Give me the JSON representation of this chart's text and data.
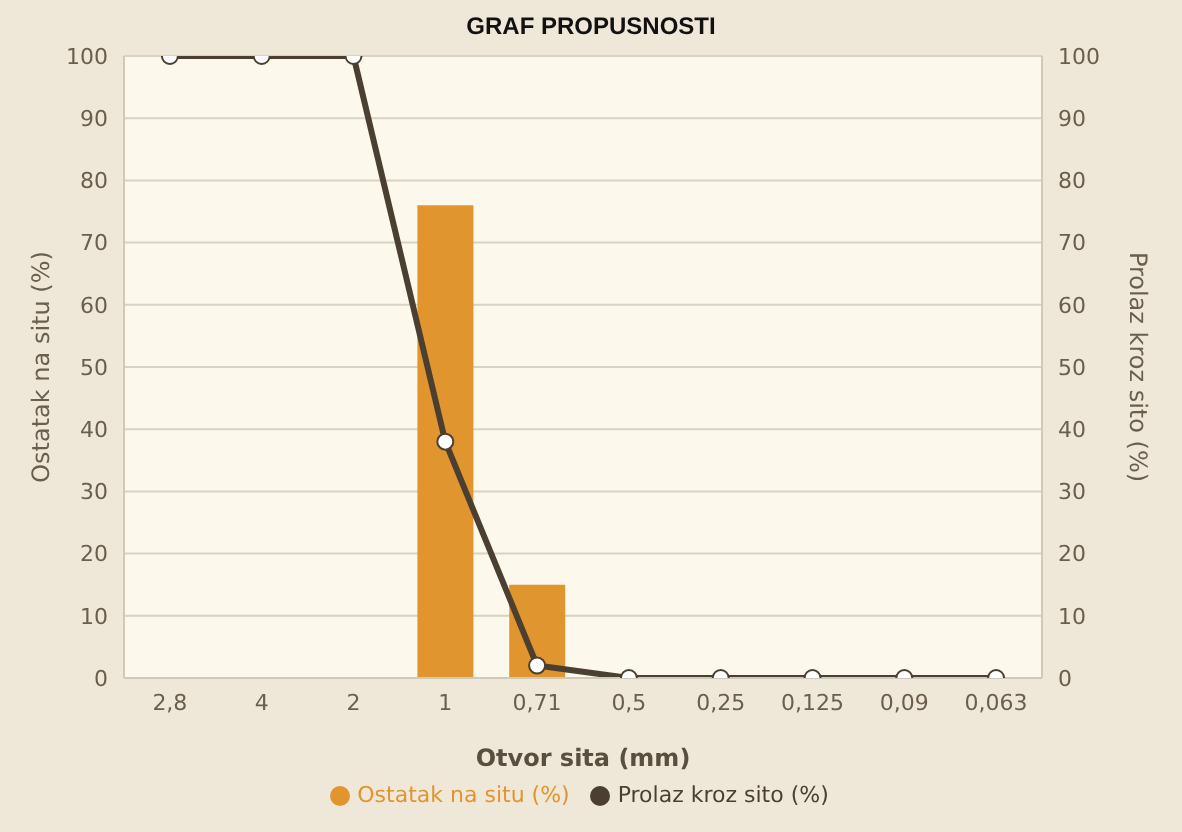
{
  "chart_data": {
    "type": "bar",
    "title": "GRAF PROPUSNOSTI",
    "xlabel": "Otvor sita (mm)",
    "ylabel": "Ostatak na situ (%)",
    "y2label": "Prolaz kroz sito (%)",
    "categories": [
      "2,8",
      "4",
      "2",
      "1",
      "0,71",
      "0,5",
      "0,25",
      "0,125",
      "0,09",
      "0,063"
    ],
    "series": [
      {
        "name": "Ostatak na situ (%)",
        "color": "#e0952f",
        "values": [
          null,
          null,
          0,
          76,
          15,
          0,
          0,
          0,
          0,
          0
        ]
      },
      {
        "name": "Prolaz kroz sito (%)",
        "type": "line",
        "axis": "y2",
        "color": "#4a3f30",
        "marker": "circle",
        "values": [
          100,
          100,
          100,
          38,
          2,
          0,
          0,
          0,
          0,
          0
        ]
      }
    ],
    "ylim": [
      0,
      100
    ],
    "yticks": [
      0,
      10,
      20,
      30,
      40,
      50,
      60,
      70,
      80,
      90,
      100
    ],
    "y2lim": [
      0,
      100
    ],
    "y2ticks": [
      0,
      10,
      20,
      30,
      40,
      50,
      60,
      70,
      80,
      90,
      100
    ],
    "grid": "y",
    "legend": "bottom"
  }
}
